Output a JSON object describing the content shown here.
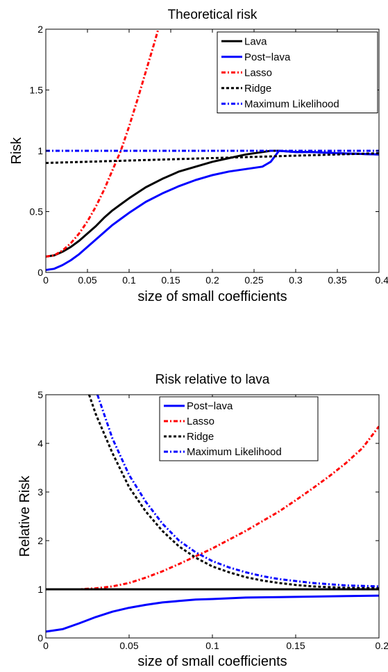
{
  "chart_data": [
    {
      "type": "line",
      "title": "Theoretical risk",
      "xlabel": "size of small coefficients",
      "ylabel": "Risk",
      "xlim": [
        0,
        0.4
      ],
      "ylim": [
        0,
        2
      ],
      "xticks": [
        "0",
        "0.05",
        "0.1",
        "0.15",
        "0.2",
        "0.25",
        "0.3",
        "0.35",
        "0.4"
      ],
      "xtick_values": [
        0,
        0.05,
        0.1,
        0.15,
        0.2,
        0.25,
        0.3,
        0.35,
        0.4
      ],
      "yticks": [
        "0",
        "0.5",
        "1",
        "1.5",
        "2"
      ],
      "ytick_values": [
        0,
        0.5,
        1,
        1.5,
        2
      ],
      "legend_position": "top-right",
      "series": [
        {
          "name": "Lava",
          "color": "#000000",
          "style": "solid",
          "x": [
            0,
            0.01,
            0.02,
            0.03,
            0.04,
            0.05,
            0.06,
            0.07,
            0.08,
            0.09,
            0.1,
            0.12,
            0.14,
            0.16,
            0.18,
            0.2,
            0.22,
            0.24,
            0.26,
            0.27,
            0.28,
            0.3,
            0.32,
            0.35,
            0.4
          ],
          "y": [
            0.13,
            0.14,
            0.17,
            0.21,
            0.26,
            0.32,
            0.38,
            0.45,
            0.51,
            0.56,
            0.61,
            0.7,
            0.77,
            0.83,
            0.87,
            0.91,
            0.94,
            0.97,
            0.99,
            1.0,
            1.0,
            0.99,
            0.99,
            0.98,
            0.97
          ]
        },
        {
          "name": "Post−lava",
          "color": "#0000ff",
          "style": "solid",
          "x": [
            0,
            0.01,
            0.02,
            0.03,
            0.04,
            0.05,
            0.06,
            0.07,
            0.08,
            0.09,
            0.1,
            0.12,
            0.14,
            0.16,
            0.18,
            0.2,
            0.22,
            0.24,
            0.26,
            0.27,
            0.28,
            0.3,
            0.32,
            0.35,
            0.4
          ],
          "y": [
            0.02,
            0.03,
            0.06,
            0.1,
            0.15,
            0.21,
            0.27,
            0.33,
            0.39,
            0.44,
            0.49,
            0.58,
            0.65,
            0.71,
            0.76,
            0.8,
            0.83,
            0.85,
            0.87,
            0.91,
            1.0,
            0.99,
            0.99,
            0.98,
            0.97
          ]
        },
        {
          "name": "Lasso",
          "color": "#ff0000",
          "style": "dashdot",
          "x": [
            0,
            0.01,
            0.02,
            0.03,
            0.04,
            0.05,
            0.06,
            0.07,
            0.08,
            0.09,
            0.1,
            0.11,
            0.12,
            0.13,
            0.135
          ],
          "y": [
            0.13,
            0.14,
            0.18,
            0.24,
            0.32,
            0.42,
            0.54,
            0.68,
            0.84,
            1.0,
            1.2,
            1.42,
            1.65,
            1.88,
            2.0
          ]
        },
        {
          "name": "Ridge",
          "color": "#000000",
          "style": "dashed",
          "x": [
            0,
            0.1,
            0.2,
            0.3,
            0.4
          ],
          "y": [
            0.9,
            0.92,
            0.94,
            0.96,
            0.98
          ]
        },
        {
          "name": "Maximum Likelihood",
          "color": "#0000ff",
          "style": "dashdot",
          "x": [
            0,
            0.4
          ],
          "y": [
            1.0,
            1.0
          ]
        }
      ]
    },
    {
      "type": "line",
      "title": "Risk relative to lava",
      "xlabel": "size of small coefficients",
      "ylabel": "Relative Risk",
      "xlim": [
        0,
        0.2
      ],
      "ylim": [
        0,
        5
      ],
      "xticks": [
        "0",
        "0.05",
        "0.1",
        "0.15",
        "0.2"
      ],
      "xtick_values": [
        0,
        0.05,
        0.1,
        0.15,
        0.2
      ],
      "yticks": [
        "0",
        "1",
        "2",
        "3",
        "4",
        "5"
      ],
      "ytick_values": [
        0,
        1,
        2,
        3,
        4,
        5
      ],
      "legend_position": "top-center",
      "series": [
        {
          "name": "Post−lava",
          "color": "#0000ff",
          "style": "solid",
          "x": [
            0,
            0.01,
            0.02,
            0.03,
            0.04,
            0.05,
            0.06,
            0.07,
            0.08,
            0.09,
            0.1,
            0.12,
            0.14,
            0.16,
            0.18,
            0.2
          ],
          "y": [
            0.13,
            0.18,
            0.3,
            0.43,
            0.54,
            0.62,
            0.68,
            0.73,
            0.76,
            0.79,
            0.8,
            0.83,
            0.84,
            0.85,
            0.86,
            0.87
          ]
        },
        {
          "name": "Lasso",
          "color": "#ff0000",
          "style": "dashdot",
          "x": [
            0,
            0.02,
            0.03,
            0.04,
            0.05,
            0.06,
            0.07,
            0.08,
            0.09,
            0.1,
            0.11,
            0.12,
            0.13,
            0.14,
            0.15,
            0.16,
            0.17,
            0.18,
            0.19,
            0.2
          ],
          "y": [
            1.0,
            1.0,
            1.02,
            1.06,
            1.13,
            1.24,
            1.37,
            1.52,
            1.68,
            1.84,
            2.02,
            2.2,
            2.4,
            2.6,
            2.83,
            3.07,
            3.32,
            3.59,
            3.9,
            4.35
          ]
        },
        {
          "name": "Ridge",
          "color": "#000000",
          "style": "dashed",
          "x": [
            0.026,
            0.03,
            0.04,
            0.05,
            0.06,
            0.07,
            0.08,
            0.09,
            0.1,
            0.11,
            0.12,
            0.13,
            0.14,
            0.15,
            0.16,
            0.18,
            0.2
          ],
          "y": [
            5.0,
            4.6,
            3.8,
            3.1,
            2.6,
            2.2,
            1.88,
            1.65,
            1.47,
            1.35,
            1.25,
            1.18,
            1.13,
            1.09,
            1.06,
            1.03,
            1.02
          ]
        },
        {
          "name": "Maximum Likelihood",
          "color": "#0000ff",
          "style": "dashdot",
          "x": [
            0.031,
            0.035,
            0.04,
            0.05,
            0.06,
            0.07,
            0.08,
            0.09,
            0.1,
            0.11,
            0.12,
            0.13,
            0.14,
            0.15,
            0.16,
            0.18,
            0.2
          ],
          "y": [
            5.0,
            4.6,
            4.1,
            3.35,
            2.8,
            2.35,
            2.0,
            1.76,
            1.58,
            1.45,
            1.35,
            1.27,
            1.21,
            1.17,
            1.13,
            1.08,
            1.06
          ]
        },
        {
          "name": "",
          "color": "#000000",
          "style": "solid",
          "x": [
            0,
            0.2
          ],
          "y": [
            1.0,
            1.0
          ]
        }
      ]
    }
  ]
}
